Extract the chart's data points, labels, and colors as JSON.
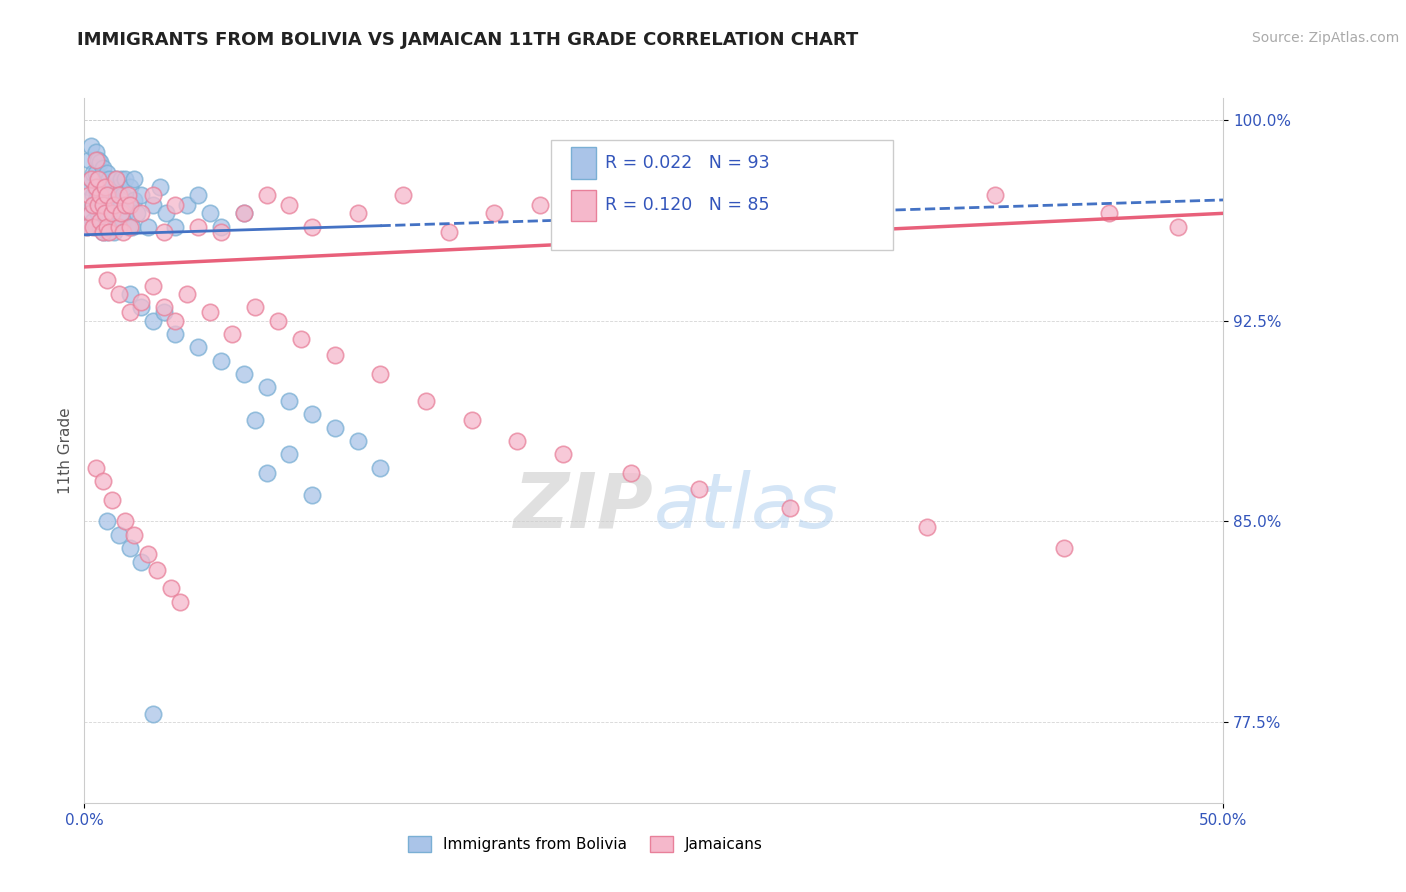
{
  "title": "IMMIGRANTS FROM BOLIVIA VS JAMAICAN 11TH GRADE CORRELATION CHART",
  "source": "Source: ZipAtlas.com",
  "ylabel": "11th Grade",
  "xmin": 0.0,
  "xmax": 0.5,
  "ymin": 0.745,
  "ymax": 1.008,
  "xtick_vals": [
    0.0,
    0.5
  ],
  "xtick_labels": [
    "0.0%",
    "50.0%"
  ],
  "ytick_vals": [
    0.775,
    0.85,
    0.925,
    1.0
  ],
  "ytick_labels": [
    "77.5%",
    "85.0%",
    "92.5%",
    "100.0%"
  ],
  "series1_color": "#aac4e8",
  "series1_edge": "#7aafd4",
  "series2_color": "#f5b8cb",
  "series2_edge": "#e8809a",
  "trend1_color": "#4472c4",
  "trend2_color": "#e8607a",
  "R1": 0.022,
  "N1": 93,
  "R2": 0.12,
  "N2": 85,
  "legend_label1": "Immigrants from Bolivia",
  "legend_label2": "Jamaicans",
  "watermark": "ZIPAtlas",
  "title_fontsize": 13,
  "axis_label_fontsize": 11,
  "tick_fontsize": 11,
  "source_fontsize": 10,
  "blue_trend_x0": 0.0,
  "blue_trend_y0": 0.957,
  "blue_trend_x1": 0.5,
  "blue_trend_y1": 0.97,
  "pink_trend_x0": 0.0,
  "pink_trend_y0": 0.945,
  "pink_trend_x1": 0.5,
  "pink_trend_y1": 0.965,
  "blue_x": [
    0.001,
    0.002,
    0.002,
    0.003,
    0.003,
    0.003,
    0.004,
    0.004,
    0.004,
    0.004,
    0.005,
    0.005,
    0.005,
    0.005,
    0.005,
    0.006,
    0.006,
    0.006,
    0.007,
    0.007,
    0.007,
    0.007,
    0.008,
    0.008,
    0.008,
    0.008,
    0.009,
    0.009,
    0.009,
    0.01,
    0.01,
    0.01,
    0.01,
    0.011,
    0.011,
    0.011,
    0.012,
    0.012,
    0.013,
    0.013,
    0.013,
    0.014,
    0.014,
    0.014,
    0.015,
    0.015,
    0.016,
    0.016,
    0.017,
    0.017,
    0.018,
    0.018,
    0.019,
    0.02,
    0.02,
    0.021,
    0.022,
    0.022,
    0.023,
    0.025,
    0.028,
    0.03,
    0.033,
    0.036,
    0.04,
    0.045,
    0.05,
    0.055,
    0.06,
    0.07,
    0.075,
    0.08,
    0.09,
    0.1,
    0.02,
    0.025,
    0.03,
    0.035,
    0.04,
    0.05,
    0.06,
    0.07,
    0.08,
    0.09,
    0.1,
    0.11,
    0.12,
    0.13,
    0.01,
    0.015,
    0.02,
    0.025,
    0.03
  ],
  "blue_y": [
    0.96,
    0.975,
    0.985,
    0.965,
    0.978,
    0.99,
    0.968,
    0.98,
    0.972,
    0.962,
    0.97,
    0.98,
    0.988,
    0.96,
    0.974,
    0.965,
    0.975,
    0.985,
    0.97,
    0.978,
    0.96,
    0.984,
    0.965,
    0.973,
    0.982,
    0.958,
    0.968,
    0.978,
    0.96,
    0.972,
    0.98,
    0.965,
    0.958,
    0.97,
    0.978,
    0.962,
    0.968,
    0.975,
    0.965,
    0.972,
    0.958,
    0.968,
    0.978,
    0.96,
    0.965,
    0.975,
    0.968,
    0.978,
    0.962,
    0.972,
    0.965,
    0.978,
    0.96,
    0.968,
    0.975,
    0.96,
    0.97,
    0.978,
    0.965,
    0.972,
    0.96,
    0.968,
    0.975,
    0.965,
    0.96,
    0.968,
    0.972,
    0.965,
    0.96,
    0.965,
    0.888,
    0.868,
    0.875,
    0.86,
    0.935,
    0.93,
    0.925,
    0.928,
    0.92,
    0.915,
    0.91,
    0.905,
    0.9,
    0.895,
    0.89,
    0.885,
    0.88,
    0.87,
    0.85,
    0.845,
    0.84,
    0.835,
    0.778
  ],
  "pink_x": [
    0.001,
    0.002,
    0.003,
    0.003,
    0.004,
    0.004,
    0.005,
    0.005,
    0.006,
    0.006,
    0.007,
    0.007,
    0.008,
    0.008,
    0.009,
    0.009,
    0.01,
    0.01,
    0.011,
    0.012,
    0.013,
    0.014,
    0.015,
    0.015,
    0.016,
    0.017,
    0.018,
    0.019,
    0.02,
    0.02,
    0.025,
    0.03,
    0.035,
    0.04,
    0.05,
    0.06,
    0.07,
    0.08,
    0.09,
    0.1,
    0.12,
    0.14,
    0.16,
    0.18,
    0.2,
    0.23,
    0.26,
    0.3,
    0.35,
    0.4,
    0.45,
    0.48,
    0.01,
    0.015,
    0.02,
    0.025,
    0.03,
    0.035,
    0.04,
    0.045,
    0.055,
    0.065,
    0.075,
    0.085,
    0.095,
    0.11,
    0.13,
    0.15,
    0.17,
    0.19,
    0.21,
    0.24,
    0.27,
    0.31,
    0.37,
    0.43,
    0.005,
    0.008,
    0.012,
    0.018,
    0.022,
    0.028,
    0.032,
    0.038,
    0.042
  ],
  "pink_y": [
    0.96,
    0.972,
    0.965,
    0.978,
    0.968,
    0.96,
    0.975,
    0.985,
    0.968,
    0.978,
    0.962,
    0.972,
    0.958,
    0.968,
    0.965,
    0.975,
    0.96,
    0.972,
    0.958,
    0.965,
    0.968,
    0.978,
    0.96,
    0.972,
    0.965,
    0.958,
    0.968,
    0.972,
    0.96,
    0.968,
    0.965,
    0.972,
    0.958,
    0.968,
    0.96,
    0.958,
    0.965,
    0.972,
    0.968,
    0.96,
    0.965,
    0.972,
    0.958,
    0.965,
    0.968,
    0.972,
    0.96,
    0.965,
    0.968,
    0.972,
    0.965,
    0.96,
    0.94,
    0.935,
    0.928,
    0.932,
    0.938,
    0.93,
    0.925,
    0.935,
    0.928,
    0.92,
    0.93,
    0.925,
    0.918,
    0.912,
    0.905,
    0.895,
    0.888,
    0.88,
    0.875,
    0.868,
    0.862,
    0.855,
    0.848,
    0.84,
    0.87,
    0.865,
    0.858,
    0.85,
    0.845,
    0.838,
    0.832,
    0.825,
    0.82
  ]
}
